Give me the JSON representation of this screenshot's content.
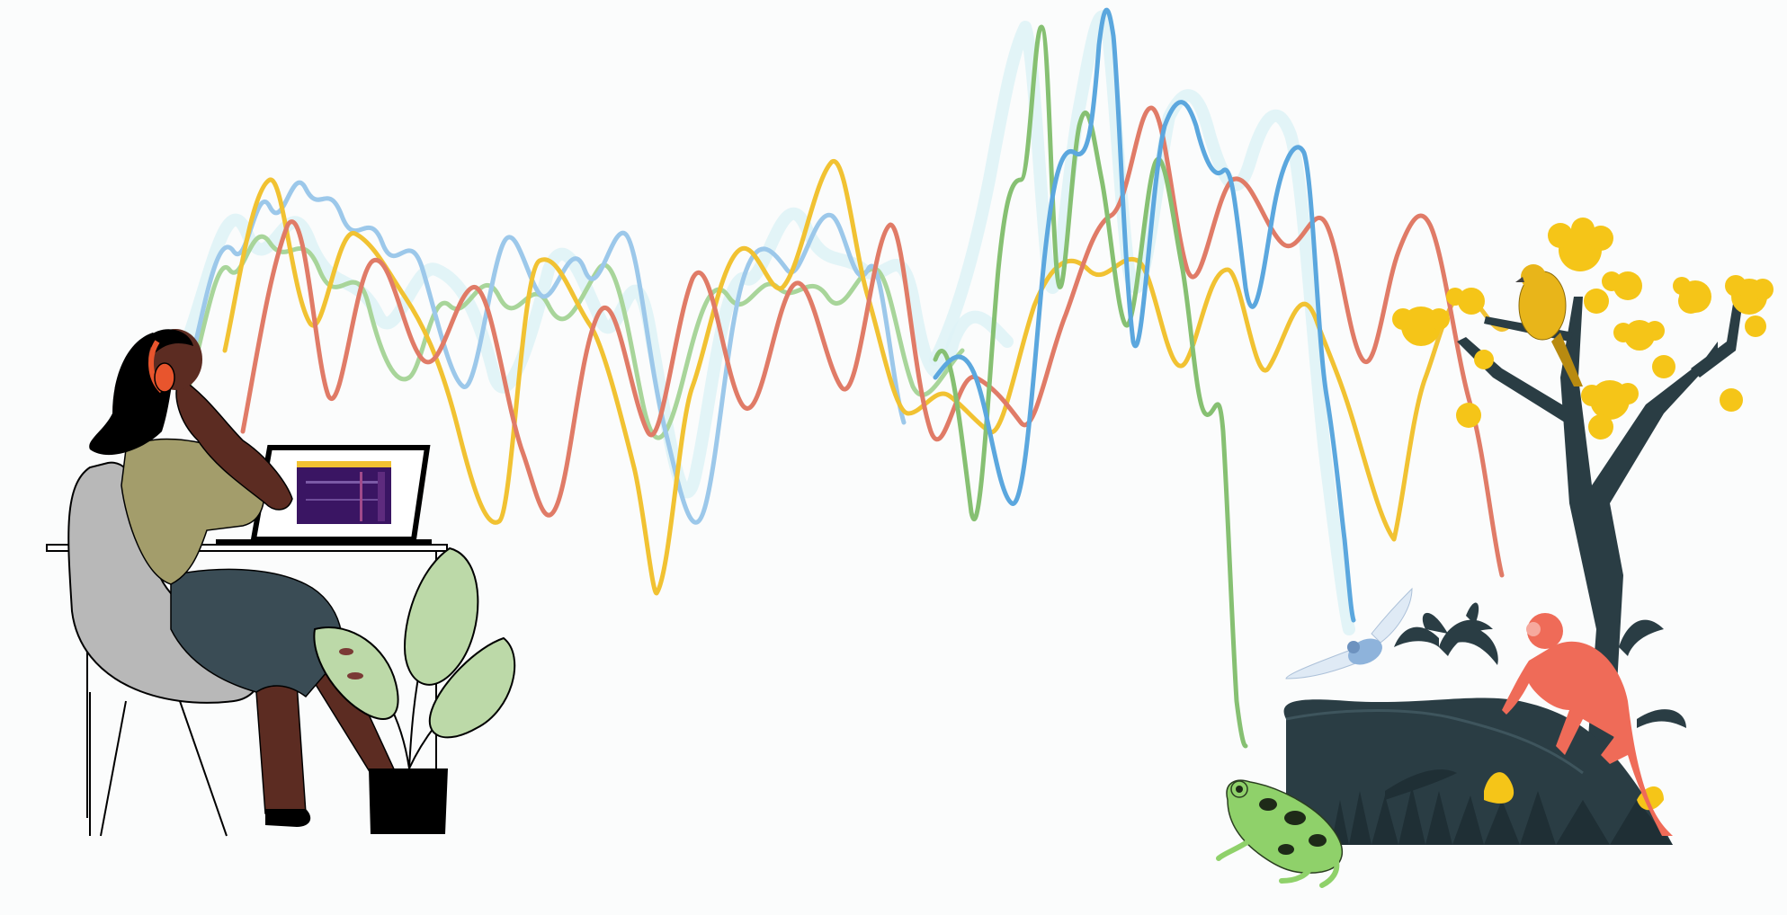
{
  "colors": {
    "background": "#fbfcfc",
    "wave_blue": "#5ba7de",
    "wave_light_blue": "#9cc8ea",
    "wave_green": "#86c072",
    "wave_light_green": "#a8d59a",
    "wave_yellow": "#f1c232",
    "wave_red": "#e07b67",
    "skin": "#5c2c22",
    "shirt": "#a39d6b",
    "pants": "#3a4c55",
    "chair": "#b8b8b8",
    "headphones": "#e8552d",
    "plant_leaf": "#bcd9a8",
    "pot": "#000000",
    "jungle_dark": "#2a3d44",
    "flower_yellow": "#f5c518",
    "bird": "#e8b51a",
    "monkey": "#ef6b58",
    "frog": "#8fd16a",
    "cicada": "#7ba7d6",
    "spectrogram_bg": "#3a1563"
  },
  "icons": [
    "person-listening-icon",
    "headphones-icon",
    "laptop-icon",
    "spectrogram-icon",
    "chair-icon",
    "potted-plant-icon",
    "tree-icon",
    "bird-icon",
    "monkey-icon",
    "frog-icon",
    "cicada-icon",
    "jungle-foliage-icon"
  ]
}
